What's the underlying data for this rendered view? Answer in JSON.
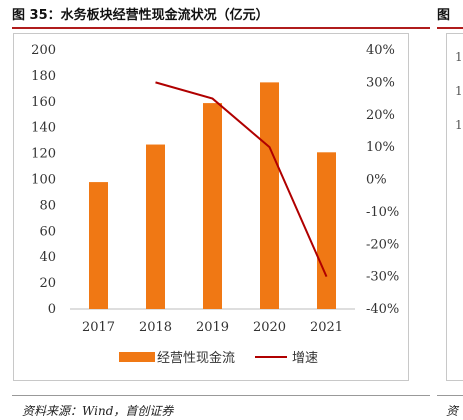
{
  "figure": {
    "title": "图 35：水务板块经营性现金流状况（亿元）",
    "source": "资料来源：Wind，首创证券"
  },
  "next_figure": {
    "title_fragment": "图",
    "source_fragment": "资",
    "axis_fragments": [
      "1",
      "1",
      "1"
    ]
  },
  "colors": {
    "bar": "#f07814",
    "line": "#b00000",
    "accent_rule": "#b01c1c"
  },
  "chart_data": {
    "type": "bar",
    "categories": [
      "2017",
      "2018",
      "2019",
      "2020",
      "2021"
    ],
    "series": [
      {
        "name": "经营性现金流",
        "type": "bar",
        "axis": "left",
        "values": [
          98,
          127,
          159,
          175,
          121
        ]
      },
      {
        "name": "增速",
        "type": "line",
        "axis": "right",
        "values": [
          null,
          30,
          25,
          10,
          -30
        ]
      }
    ],
    "y_left": {
      "min": 0,
      "max": 200,
      "step": 20,
      "ticks": [
        "0",
        "20",
        "40",
        "60",
        "80",
        "100",
        "120",
        "140",
        "160",
        "180",
        "200"
      ]
    },
    "y_right": {
      "min": -40,
      "max": 40,
      "step": 10,
      "unit": "%",
      "ticks": [
        "-40%",
        "-30%",
        "-20%",
        "-10%",
        "0%",
        "10%",
        "20%",
        "30%",
        "40%"
      ]
    },
    "legend_position": "bottom",
    "grid": false
  }
}
